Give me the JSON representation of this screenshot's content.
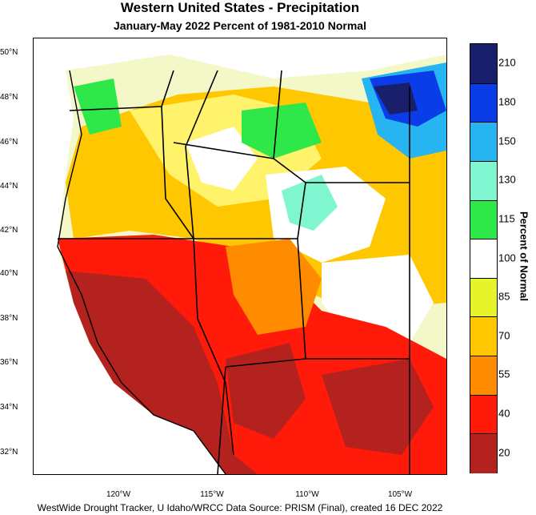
{
  "header": {
    "title": "Western United States - Precipitation",
    "subtitle": "January-May 2022  Percent of 1981-2010 Normal"
  },
  "axes": {
    "lat_labels": [
      "50°N",
      "48°N",
      "46°N",
      "44°N",
      "42°N",
      "40°N",
      "38°N",
      "36°N",
      "34°N",
      "32°N"
    ],
    "lon_labels": [
      "120°W",
      "115°W",
      "110°W",
      "105°W"
    ]
  },
  "legend": {
    "title": "Percent of Normal",
    "tick_labels": [
      "210",
      "180",
      "150",
      "130",
      "115",
      "100",
      "85",
      "70",
      "55",
      "40",
      "20"
    ],
    "colors": [
      "#1a1f6b",
      "#0a3de8",
      "#26b5f0",
      "#7ff5d0",
      "#2ee84a",
      "#ffffff",
      "#e6f52a",
      "#ffc700",
      "#ff8c00",
      "#ff1a0a",
      "#b3221f"
    ]
  },
  "footer": {
    "credit": "WestWide Drought Tracker, U Idaho/WRCC Data Source: PRISM (Final), created 16 DEC 2022"
  }
}
